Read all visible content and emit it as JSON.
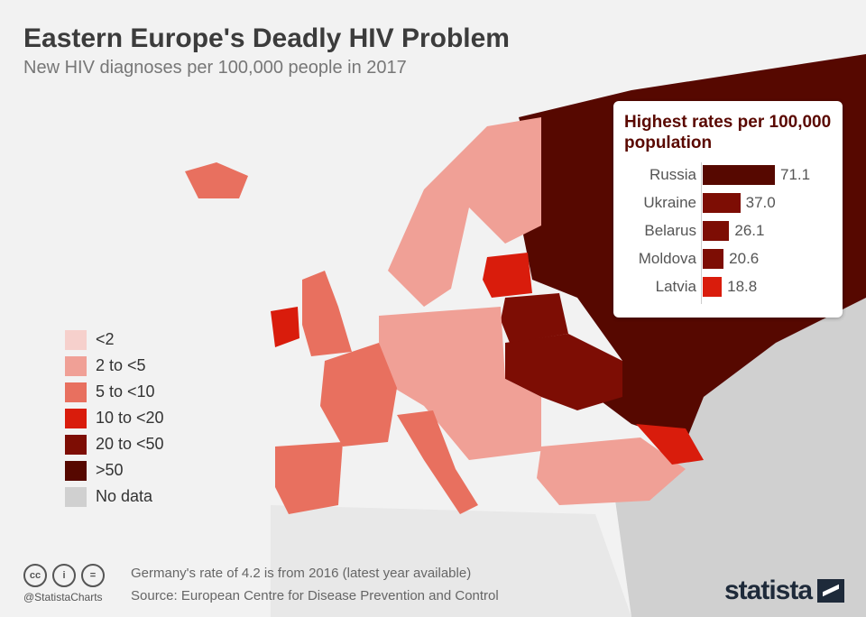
{
  "title": "Eastern Europe's Deadly HIV Problem",
  "subtitle": "New HIV diagnoses per 100,000 people in 2017",
  "legend": [
    {
      "label": "<2",
      "color": "#f6d0cc"
    },
    {
      "label": "2 to <5",
      "color": "#f0a096"
    },
    {
      "label": "5 to <10",
      "color": "#e8705f"
    },
    {
      "label": "10 to <20",
      "color": "#d91c0c"
    },
    {
      "label": "20 to <50",
      "color": "#7d0d04"
    },
    {
      "label": ">50",
      "color": "#560800"
    },
    {
      "label": "No data",
      "color": "#d0d0d0"
    }
  ],
  "chart_data": {
    "type": "bar",
    "title": "Highest rates per 100,000 population",
    "categories": [
      "Russia",
      "Ukraine",
      "Belarus",
      "Moldova",
      "Latvia"
    ],
    "values": [
      71.1,
      37.0,
      26.1,
      20.6,
      18.8
    ],
    "value_labels": [
      "71.1",
      "37.0",
      "26.1",
      "20.6",
      "18.8"
    ],
    "colors": [
      "#560800",
      "#7d0d04",
      "#7d0d04",
      "#7d0d04",
      "#d91c0c"
    ]
  },
  "footer": {
    "note": "Germany's rate of 4.2 is from 2016 (latest year available)",
    "source": "Source: European Centre for Disease Prevention and Control",
    "handle": "@StatistaCharts",
    "logo": "statista",
    "cc_icons": [
      "cc",
      "i",
      "="
    ]
  }
}
